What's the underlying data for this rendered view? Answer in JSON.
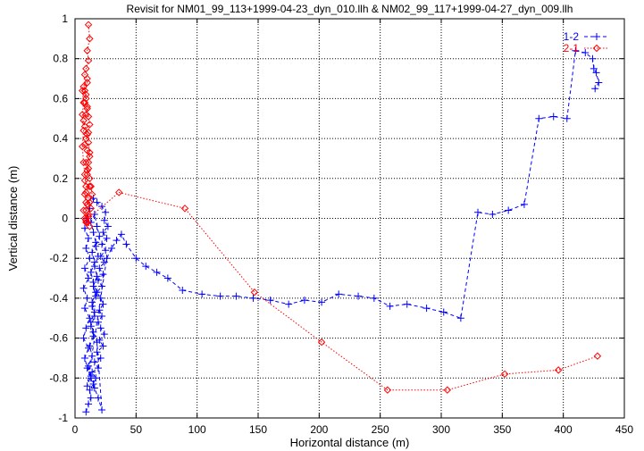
{
  "chart_data": {
    "type": "scatter",
    "title": "Revisit for NM01_99_113+1999-04-23_dyn_010.llh & NM02_99_117+1999-04-27_dyn_009.llh",
    "xlabel": "Horizontal distance (m)",
    "ylabel": "Vertical distance (m)",
    "xlim": [
      0,
      450
    ],
    "ylim": [
      -1,
      1
    ],
    "x_ticks": [
      0,
      50,
      100,
      150,
      200,
      250,
      300,
      350,
      400,
      450
    ],
    "y_ticks": [
      -1,
      -0.8,
      -0.6,
      -0.4,
      -0.2,
      0,
      0.2,
      0.4,
      0.6,
      0.8,
      1
    ],
    "x_tick_labels": [
      "0",
      "50",
      "100",
      "150",
      "200",
      "250",
      "300",
      "350",
      "400",
      "450"
    ],
    "y_tick_labels": [
      "-1",
      "-0.8",
      "-0.6",
      "-0.4",
      "-0.2",
      "0",
      "0.2",
      "0.4",
      "0.6",
      "0.8",
      "1"
    ],
    "grid": true,
    "legend_position": "top-right",
    "series": [
      {
        "name": "1-2",
        "color": "#0000ff",
        "marker": "plus",
        "line": "dashed",
        "points": [
          [
            9,
            -0.97
          ],
          [
            11,
            -0.93
          ],
          [
            13,
            -0.9
          ],
          [
            12,
            -0.86
          ],
          [
            15,
            -0.83
          ],
          [
            17,
            -0.8
          ],
          [
            14,
            -0.77
          ],
          [
            19,
            -0.75
          ],
          [
            16,
            -0.72
          ],
          [
            21,
            -0.7
          ],
          [
            18,
            -0.67
          ],
          [
            23,
            -0.64
          ],
          [
            20,
            -0.61
          ],
          [
            24,
            -0.58
          ],
          [
            21,
            -0.55
          ],
          [
            19,
            -0.52
          ],
          [
            22,
            -0.49
          ],
          [
            20,
            -0.46
          ],
          [
            23,
            -0.43
          ],
          [
            21,
            -0.4
          ],
          [
            18,
            -0.37
          ],
          [
            22,
            -0.34
          ],
          [
            19,
            -0.31
          ],
          [
            23,
            -0.28
          ],
          [
            20,
            -0.25
          ],
          [
            24,
            -0.22
          ],
          [
            21,
            -0.19
          ],
          [
            25,
            -0.16
          ],
          [
            22,
            -0.13
          ],
          [
            26,
            -0.1
          ],
          [
            23,
            -0.07
          ],
          [
            27,
            -0.04
          ],
          [
            24,
            -0.01
          ],
          [
            25,
            0.03
          ],
          [
            22,
            0.06
          ],
          [
            18,
            0.08
          ],
          [
            15,
            0.1
          ],
          [
            12,
            0.05
          ],
          [
            10,
            0.0
          ],
          [
            8,
            -0.05
          ],
          [
            11,
            -0.1
          ],
          [
            9,
            -0.15
          ],
          [
            12,
            -0.2
          ],
          [
            8,
            -0.25
          ],
          [
            11,
            -0.3
          ],
          [
            7,
            -0.35
          ],
          [
            10,
            -0.4
          ],
          [
            8,
            -0.45
          ],
          [
            12,
            -0.5
          ],
          [
            9,
            -0.55
          ],
          [
            7,
            -0.6
          ],
          [
            11,
            -0.65
          ],
          [
            8,
            -0.7
          ],
          [
            10,
            -0.75
          ],
          [
            13,
            -0.8
          ],
          [
            16,
            -0.85
          ],
          [
            19,
            -0.9
          ],
          [
            22,
            -0.96
          ],
          [
            18,
            -0.62
          ],
          [
            15,
            -0.57
          ],
          [
            13,
            -0.52
          ],
          [
            16,
            -0.47
          ],
          [
            14,
            -0.42
          ],
          [
            17,
            -0.37
          ],
          [
            15,
            -0.32
          ],
          [
            13,
            -0.27
          ],
          [
            16,
            -0.22
          ],
          [
            14,
            -0.17
          ],
          [
            17,
            -0.12
          ],
          [
            15,
            -0.07
          ],
          [
            13,
            -0.02
          ],
          [
            16,
            0.02
          ],
          [
            18,
            -0.04
          ],
          [
            20,
            -0.09
          ],
          [
            17,
            -0.14
          ],
          [
            19,
            -0.19
          ],
          [
            16,
            -0.24
          ],
          [
            18,
            -0.29
          ],
          [
            15,
            -0.34
          ],
          [
            17,
            -0.39
          ],
          [
            14,
            -0.44
          ],
          [
            16,
            -0.49
          ],
          [
            13,
            -0.54
          ],
          [
            15,
            -0.59
          ],
          [
            12,
            -0.64
          ],
          [
            14,
            -0.69
          ],
          [
            11,
            -0.74
          ],
          [
            13,
            -0.79
          ],
          [
            10,
            -0.84
          ],
          [
            26,
            -0.2
          ],
          [
            30,
            -0.15
          ],
          [
            34,
            -0.11
          ],
          [
            38,
            -0.08
          ],
          [
            42,
            -0.13
          ],
          [
            50,
            -0.2
          ],
          [
            58,
            -0.24
          ],
          [
            67,
            -0.27
          ],
          [
            76,
            -0.3
          ],
          [
            88,
            -0.36
          ],
          [
            104,
            -0.38
          ],
          [
            119,
            -0.39
          ],
          [
            132,
            -0.39
          ],
          [
            146,
            -0.4
          ],
          [
            160,
            -0.41
          ],
          [
            175,
            -0.43
          ],
          [
            188,
            -0.41
          ],
          [
            202,
            -0.42
          ],
          [
            216,
            -0.38
          ],
          [
            232,
            -0.39
          ],
          [
            245,
            -0.4
          ],
          [
            258,
            -0.44
          ],
          [
            272,
            -0.43
          ],
          [
            288,
            -0.45
          ],
          [
            302,
            -0.47
          ],
          [
            316,
            -0.5
          ],
          [
            330,
            0.03
          ],
          [
            342,
            0.02
          ],
          [
            355,
            0.04
          ],
          [
            368,
            0.07
          ],
          [
            380,
            0.5
          ],
          [
            392,
            0.51
          ],
          [
            403,
            0.5
          ],
          [
            410,
            0.84
          ],
          [
            418,
            0.83
          ],
          [
            424,
            0.8
          ],
          [
            425,
            0.75
          ],
          [
            427,
            0.73
          ],
          [
            429,
            0.68
          ],
          [
            426,
            0.65
          ]
        ]
      },
      {
        "name": "2-1",
        "color": "#ff0000",
        "marker": "diamond",
        "line": "dotted",
        "points": [
          [
            11,
            0.97
          ],
          [
            12,
            0.9
          ],
          [
            10,
            0.84
          ],
          [
            11,
            0.79
          ],
          [
            9,
            0.75
          ],
          [
            8,
            0.72
          ],
          [
            10,
            0.7
          ],
          [
            7,
            0.66
          ],
          [
            9,
            0.62
          ],
          [
            8,
            0.58
          ],
          [
            10,
            0.55
          ],
          [
            9,
            0.52
          ],
          [
            7,
            0.49
          ],
          [
            8,
            0.46
          ],
          [
            11,
            0.43
          ],
          [
            9,
            0.4
          ],
          [
            8,
            0.37
          ],
          [
            10,
            0.34
          ],
          [
            12,
            0.31
          ],
          [
            9,
            0.28
          ],
          [
            11,
            0.25
          ],
          [
            10,
            0.22
          ],
          [
            8,
            0.19
          ],
          [
            12,
            0.16
          ],
          [
            9,
            0.13
          ],
          [
            11,
            0.1
          ],
          [
            10,
            0.07
          ],
          [
            9,
            0.04
          ],
          [
            11,
            0.01
          ],
          [
            10,
            -0.02
          ],
          [
            12,
            -0.04
          ],
          [
            9,
            -0.02
          ],
          [
            11,
            0.02
          ],
          [
            13,
            0.05
          ],
          [
            12,
            0.08
          ],
          [
            14,
            0.12
          ],
          [
            13,
            0.16
          ],
          [
            12,
            0.2
          ],
          [
            10,
            0.24
          ],
          [
            11,
            0.28
          ],
          [
            12,
            0.33
          ],
          [
            11,
            0.38
          ],
          [
            10,
            0.42
          ],
          [
            12,
            0.47
          ],
          [
            11,
            0.51
          ],
          [
            10,
            0.56
          ],
          [
            9,
            0.6
          ],
          [
            8,
            0.64
          ],
          [
            10,
            0.68
          ],
          [
            6,
            0.64
          ],
          [
            7,
            0.58
          ],
          [
            6,
            0.52
          ],
          [
            7,
            0.44
          ],
          [
            6,
            0.36
          ],
          [
            7,
            0.28
          ],
          [
            8,
            0.22
          ],
          [
            9,
            0.16
          ],
          [
            8,
            0.12
          ],
          [
            9,
            0.08
          ],
          [
            7,
            0.04
          ],
          [
            8,
            0.0
          ],
          [
            9,
            -0.01
          ],
          [
            36,
            0.13
          ],
          [
            90,
            0.05
          ],
          [
            147,
            -0.37
          ],
          [
            202,
            -0.62
          ],
          [
            256,
            -0.86
          ],
          [
            305,
            -0.86
          ],
          [
            352,
            -0.78
          ],
          [
            396,
            -0.76
          ],
          [
            428,
            -0.69
          ]
        ]
      }
    ]
  }
}
